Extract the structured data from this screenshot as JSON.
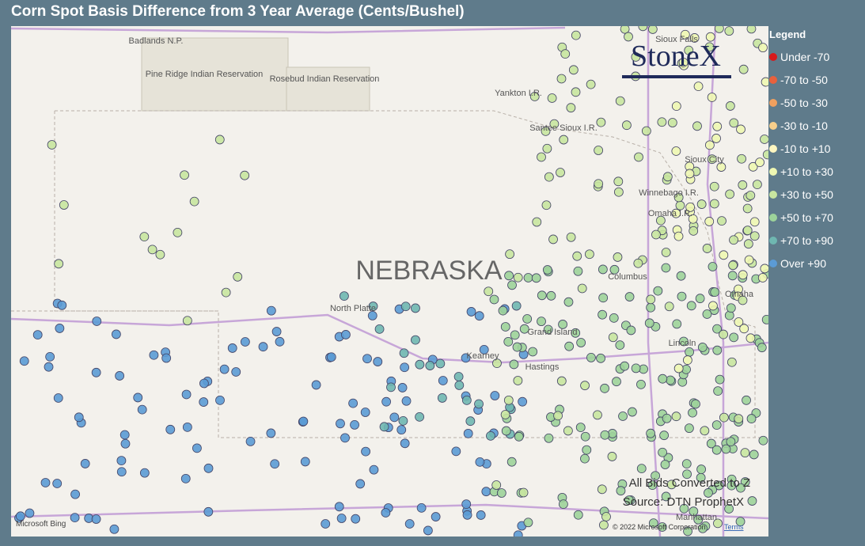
{
  "header": {
    "title": "Corn Spot Basis Difference from 3 Year Average (Cents/Bushel)"
  },
  "legend": {
    "title": "Legend",
    "items": [
      {
        "label": "Under -70",
        "color": "#d7191c"
      },
      {
        "label": "-70 to -50",
        "color": "#e8613d"
      },
      {
        "label": "-50 to -30",
        "color": "#f0a05f"
      },
      {
        "label": "-30 to -10",
        "color": "#f8cf8b"
      },
      {
        "label": "-10 to +10",
        "color": "#fdf6c0"
      },
      {
        "label": "+10 to +30",
        "color": "#eef7b2"
      },
      {
        "label": "+30 to +50",
        "color": "#c8e6a0"
      },
      {
        "label": "+50 to +70",
        "color": "#9dd39a"
      },
      {
        "label": "+70 to +90",
        "color": "#6fb7b1"
      },
      {
        "label": "Over +90",
        "color": "#5b9bd5"
      }
    ]
  },
  "map": {
    "state": "NEBRASKA",
    "places": [
      "Badlands N.P.",
      "Pine Ridge Indian Reservation",
      "Rosebud Indian Reservation",
      "Yankton I.R.",
      "Santee Sioux I.R.",
      "Sioux Falls",
      "Sioux City",
      "Winnebago I.R.",
      "Omaha I.R.",
      "North Platte",
      "Grand Island",
      "Kearney",
      "Hastings",
      "Columbus",
      "Lincoln",
      "Omaha",
      "Manhattan"
    ],
    "logo": "StoneX",
    "provider": "Microsoft Bing",
    "copyright": "© 2022 Microsoft Corporation",
    "terms": "Terms"
  },
  "notes": [
    "All Bids Converted to Z",
    "Source: DTN ProphetX"
  ]
}
